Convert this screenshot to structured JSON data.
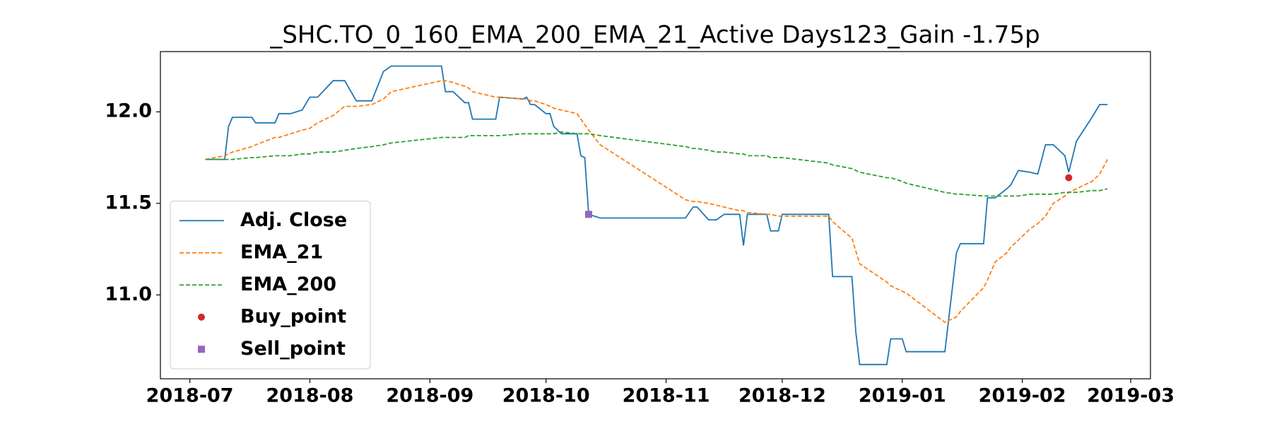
{
  "chart_data": {
    "type": "line",
    "title": "_SHC.TO_0_160_EMA_200_EMA_21_Active Days123_Gain  -1.75p",
    "x": [
      4,
      9,
      10,
      11,
      16,
      17,
      22,
      23,
      26,
      29,
      31,
      33,
      37,
      40,
      43,
      47,
      50,
      52,
      65,
      66,
      68,
      71,
      72,
      73,
      79,
      80,
      86,
      87,
      88,
      89,
      92,
      93,
      94,
      96,
      100,
      101,
      102,
      103,
      106,
      128,
      130,
      131,
      134,
      136,
      138,
      142,
      143,
      144,
      149,
      150,
      152,
      153,
      165,
      166,
      171,
      172,
      173,
      180,
      181,
      184,
      185,
      195,
      198,
      199,
      205,
      206,
      208,
      211,
      212,
      214,
      217,
      219,
      221,
      223,
      226,
      227,
      229,
      233,
      235,
      237
    ],
    "series": [
      {
        "name": "Adj. Close",
        "color": "#1f77b4",
        "style": "solid",
        "values": [
          11.74,
          11.74,
          11.92,
          11.97,
          11.97,
          11.94,
          11.94,
          11.99,
          11.99,
          12.01,
          12.08,
          12.08,
          12.17,
          12.17,
          12.06,
          12.06,
          12.22,
          12.25,
          12.25,
          12.11,
          12.11,
          12.05,
          12.05,
          11.96,
          11.96,
          12.08,
          12.07,
          12.08,
          12.04,
          12.04,
          11.99,
          11.99,
          11.92,
          11.88,
          11.88,
          11.76,
          11.75,
          11.44,
          11.42,
          11.42,
          11.48,
          11.48,
          11.41,
          11.41,
          11.44,
          11.44,
          11.27,
          11.44,
          11.44,
          11.35,
          11.35,
          11.44,
          11.44,
          11.1,
          11.1,
          10.8,
          10.62,
          10.62,
          10.76,
          10.76,
          10.69,
          10.69,
          11.23,
          11.28,
          11.28,
          11.53,
          11.53,
          11.58,
          11.6,
          11.68,
          11.67,
          11.66,
          11.82,
          11.82,
          11.76,
          11.67,
          11.84,
          11.97,
          12.04,
          12.04
        ]
      },
      {
        "name": "EMA_21",
        "color": "#ff7f0e",
        "style": "dashed",
        "values": [
          11.74,
          11.76,
          11.77,
          11.78,
          11.81,
          11.82,
          11.86,
          11.86,
          11.88,
          11.9,
          11.91,
          11.94,
          11.98,
          12.03,
          12.03,
          12.04,
          12.07,
          12.11,
          12.17,
          12.17,
          12.16,
          12.14,
          12.13,
          12.11,
          12.08,
          12.08,
          12.07,
          12.07,
          12.06,
          12.06,
          12.04,
          12.03,
          12.02,
          12.01,
          11.99,
          11.96,
          11.93,
          11.9,
          11.82,
          11.52,
          11.51,
          11.51,
          11.5,
          11.49,
          11.48,
          11.46,
          11.46,
          11.45,
          11.44,
          11.44,
          11.43,
          11.43,
          11.43,
          11.4,
          11.31,
          11.24,
          11.17,
          11.07,
          11.05,
          11.02,
          11.01,
          10.85,
          10.88,
          10.91,
          11.04,
          11.08,
          11.18,
          11.23,
          11.26,
          11.3,
          11.36,
          11.39,
          11.43,
          11.5,
          11.54,
          11.56,
          11.58,
          11.62,
          11.66,
          11.74
        ]
      },
      {
        "name": "EMA_200",
        "color": "#2ca02c",
        "style": "dashed",
        "values": [
          11.74,
          11.74,
          11.74,
          11.74,
          11.75,
          11.75,
          11.76,
          11.76,
          11.76,
          11.77,
          11.77,
          11.78,
          11.78,
          11.79,
          11.8,
          11.81,
          11.82,
          11.83,
          11.86,
          11.86,
          11.86,
          11.86,
          11.87,
          11.87,
          11.87,
          11.87,
          11.88,
          11.88,
          11.88,
          11.88,
          11.88,
          11.88,
          11.88,
          11.89,
          11.88,
          11.88,
          11.88,
          11.88,
          11.87,
          11.81,
          11.8,
          11.8,
          11.79,
          11.78,
          11.78,
          11.77,
          11.77,
          11.76,
          11.76,
          11.75,
          11.75,
          11.75,
          11.72,
          11.71,
          11.69,
          11.68,
          11.67,
          11.64,
          11.64,
          11.62,
          11.61,
          11.56,
          11.55,
          11.55,
          11.54,
          11.54,
          11.54,
          11.54,
          11.54,
          11.54,
          11.55,
          11.55,
          11.55,
          11.55,
          11.56,
          11.56,
          11.56,
          11.57,
          11.57,
          11.58
        ]
      },
      {
        "name": "Buy_point",
        "color": "#d62728",
        "marker": "circle",
        "x": [
          227
        ],
        "values": [
          11.64
        ]
      },
      {
        "name": "Sell_point",
        "color": "#9467bd",
        "marker": "square",
        "x": [
          103
        ],
        "values": [
          11.44
        ]
      }
    ],
    "xlim": [
      -7.6,
      248.1
    ],
    "xticks": [
      {
        "value": 0,
        "label": "2018-07"
      },
      {
        "value": 31,
        "label": "2018-08"
      },
      {
        "value": 62,
        "label": "2018-09"
      },
      {
        "value": 92,
        "label": "2018-10"
      },
      {
        "value": 123,
        "label": "2018-11"
      },
      {
        "value": 153,
        "label": "2018-12"
      },
      {
        "value": 184,
        "label": "2019-01"
      },
      {
        "value": 215,
        "label": "2019-02"
      },
      {
        "value": 243,
        "label": "2019-03"
      }
    ],
    "ylim": [
      10.542,
      12.329
    ],
    "yticks": [
      {
        "value": 11,
        "label": "11.0"
      },
      11.5,
      {
        "value": 12,
        "label": "12.0"
      }
    ],
    "legend": "lower left",
    "grid": false
  }
}
